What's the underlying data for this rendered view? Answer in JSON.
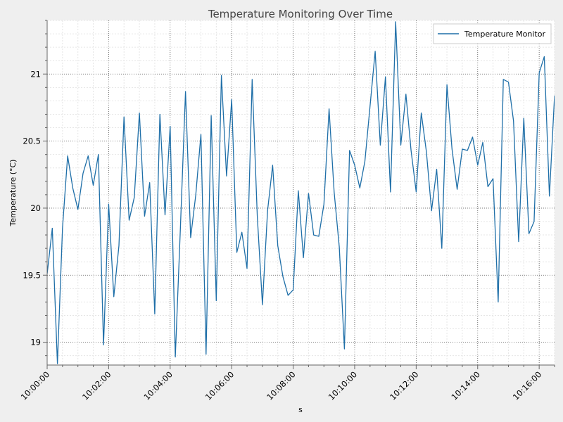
{
  "chart_data": {
    "type": "line",
    "title": "Temperature Monitoring Over Time",
    "xlabel": "s",
    "ylabel": "Temperature (°C)",
    "xlim": [
      "10:00:00",
      "10:16:30"
    ],
    "ylim": [
      18.83,
      21.4
    ],
    "yticks": [
      19,
      19.5,
      20,
      20.5,
      21
    ],
    "ytick_labels": [
      "19",
      "19.5",
      "20",
      "20.5",
      "21"
    ],
    "xticks": [
      "10:00:00",
      "10:02:00",
      "10:04:00",
      "10:06:00",
      "10:08:00",
      "10:10:00",
      "10:12:00",
      "10:14:00",
      "10:16:00"
    ],
    "grid": true,
    "legend_position": "top-right",
    "sample_interval": "10s",
    "x_start": "10:00:00",
    "series": [
      {
        "name": "Temperature Monitor",
        "color": "#1f6fa8",
        "values": [
          19.51,
          19.85,
          18.84,
          19.85,
          20.39,
          20.15,
          19.99,
          20.26,
          20.39,
          20.17,
          20.4,
          18.98,
          20.03,
          19.34,
          19.72,
          20.68,
          19.91,
          20.08,
          20.71,
          19.94,
          20.19,
          19.21,
          20.7,
          19.95,
          20.61,
          18.89,
          19.86,
          20.87,
          19.78,
          20.1,
          20.55,
          18.91,
          20.69,
          19.31,
          20.99,
          20.24,
          20.81,
          19.67,
          19.82,
          19.55,
          20.96,
          19.94,
          19.28,
          19.98,
          20.32,
          19.72,
          19.49,
          19.35,
          19.39,
          20.13,
          19.63,
          20.11,
          19.8,
          19.79,
          20.03,
          20.74,
          20.12,
          19.71,
          18.95,
          20.43,
          20.32,
          20.15,
          20.35,
          20.76,
          21.17,
          20.47,
          20.98,
          20.12,
          21.39,
          20.47,
          20.85,
          20.43,
          20.12,
          20.71,
          20.42,
          19.98,
          20.29,
          19.7,
          20.92,
          20.44,
          20.14,
          20.44,
          20.43,
          20.53,
          20.32,
          20.49,
          20.16,
          20.22,
          19.3,
          20.96,
          20.94,
          20.65,
          19.75,
          20.67,
          19.81,
          19.9,
          21.01,
          21.13,
          20.09,
          20.84
        ]
      }
    ]
  }
}
